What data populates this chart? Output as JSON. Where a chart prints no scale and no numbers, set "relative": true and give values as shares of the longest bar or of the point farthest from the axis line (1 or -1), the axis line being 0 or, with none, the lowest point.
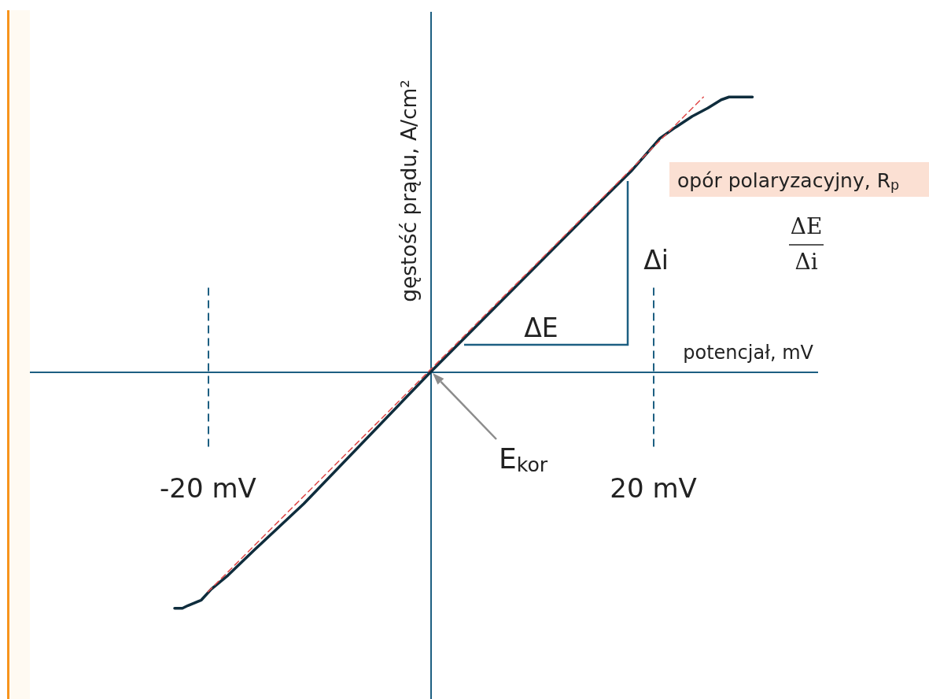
{
  "chart_data": {
    "type": "line",
    "xlabel": "potencjał, mV",
    "ylabel": "gęstość prądu, A/cm²",
    "relative": true,
    "marker": "none",
    "xlim": [
      -36,
      34.8
    ],
    "xticks": [
      {
        "value": -20,
        "label": "-20 mV"
      },
      {
        "value": 20,
        "label": "20 mV"
      }
    ],
    "ref_lines": [
      {
        "axis": "y",
        "value": 0,
        "color": "#1d5f82",
        "line_style": "solid"
      },
      {
        "axis": "x",
        "value": 0,
        "color": "#1d5f82",
        "line_style": "solid"
      },
      {
        "axis": "x",
        "value": -20,
        "color": "#1d5f82",
        "line_style": "dashed"
      },
      {
        "axis": "x",
        "value": 20,
        "color": "#1d5f82",
        "line_style": "dashed"
      }
    ],
    "series": [
      {
        "color": "#0f2d3d",
        "line_style": "solid",
        "x": [
          -23,
          -22.3,
          -21.8,
          -21.2,
          -20.6,
          -19.7,
          -18.2,
          -15.9,
          -11.4,
          0,
          15,
          18,
          20.6,
          22,
          23.5,
          24.9,
          26.1,
          26.8,
          27.7,
          28.9
        ],
        "values": [
          -0.86,
          -0.86,
          -0.85,
          -0.84,
          -0.83,
          -0.79,
          -0.74,
          -0.65,
          -0.48,
          0,
          0.61,
          0.73,
          0.85,
          0.89,
          0.93,
          0.96,
          0.99,
          1,
          1,
          1
        ]
      },
      {
        "type": "line",
        "color": "#e04848",
        "line_style": "dashed",
        "x": [
          -20,
          24.5
        ],
        "values": [
          -0.8,
          1
        ]
      }
    ],
    "annotations": [
      "ΔE",
      "Δi",
      "E$_{kor}$",
      "opór polaryzacyjny, R$_{p}$",
      "ΔE",
      "Δi"
    ]
  }
}
